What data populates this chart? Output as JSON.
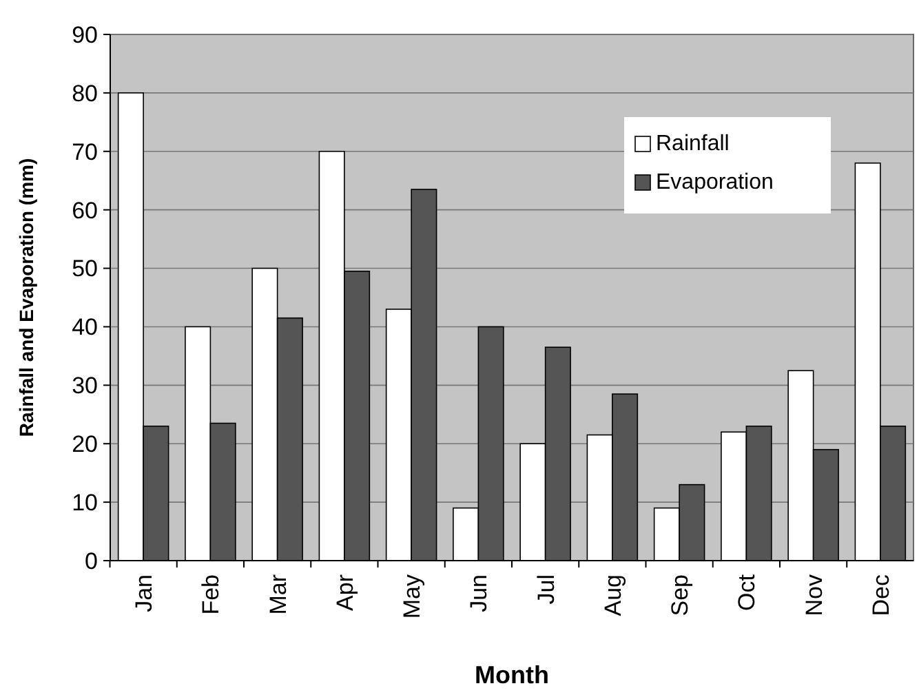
{
  "chart_data": {
    "type": "bar",
    "xlabel": "Month",
    "ylabel": "Rainfall and Evaporation (mm)",
    "categories": [
      "Jan",
      "Feb",
      "Mar",
      "Apr",
      "May",
      "Jun",
      "Jul",
      "Aug",
      "Sep",
      "Oct",
      "Nov",
      "Dec"
    ],
    "series": [
      {
        "name": "Rainfall",
        "color": "#ffffff",
        "values": [
          80,
          40,
          50,
          70,
          43,
          9,
          20,
          21.5,
          9,
          22,
          32.5,
          68
        ]
      },
      {
        "name": "Evaporation",
        "color": "#555555",
        "values": [
          23,
          23.5,
          41.5,
          49.5,
          63.5,
          40,
          36.5,
          28.5,
          13,
          23,
          19,
          23
        ]
      }
    ],
    "ylim": [
      0,
      90
    ],
    "yticks": [
      0,
      10,
      20,
      30,
      40,
      50,
      60,
      70,
      80,
      90
    ],
    "grid": "y",
    "legend": "top right"
  }
}
